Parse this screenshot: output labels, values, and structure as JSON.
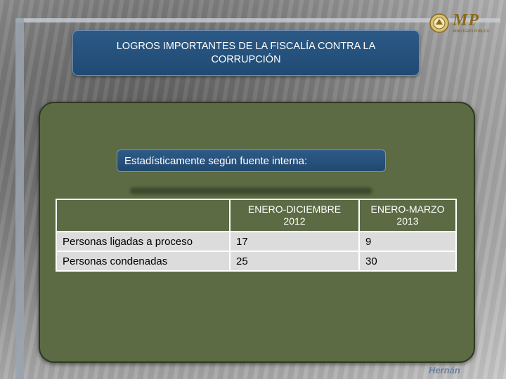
{
  "slide": {
    "title": "LOGROS IMPORTANTES DE LA FISCALÍA CONTRA LA CORRUPCIÓN",
    "subtitle": "Estadísticamente según fuente interna:",
    "logo_text": "MP",
    "logo_subtext": "MINISTERIO PÚBLICO",
    "author": "Hernán"
  },
  "table": {
    "headers": [
      "",
      "ENERO-DICIEMBRE 2012",
      "ENERO-MARZO 2013"
    ],
    "rows": [
      [
        "Personas ligadas a proceso",
        "17",
        "9"
      ],
      [
        "Personas condenadas",
        "25",
        "30"
      ]
    ]
  },
  "colors": {
    "title_bg": "#2c5a86",
    "panel_bg": "#5d6b45",
    "row_bg": "#dcdcdc",
    "logo_gold": "#8a6a1a"
  }
}
